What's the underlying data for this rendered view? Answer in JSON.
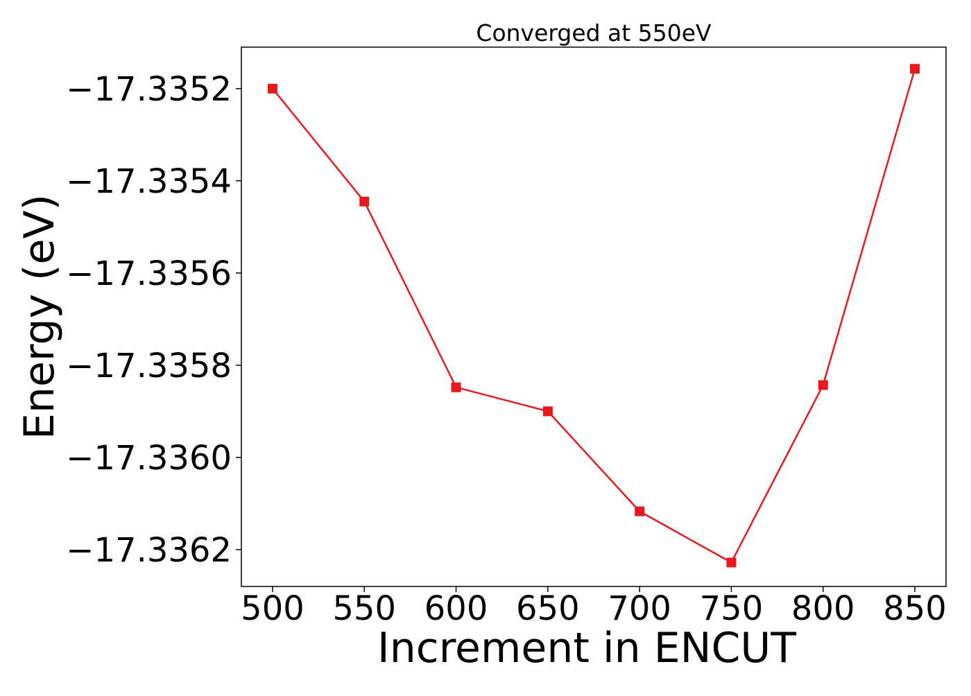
{
  "chart_data": {
    "type": "line",
    "title": "Converged at 550eV",
    "xlabel": "Increment in ENCUT",
    "ylabel": "Energy (eV)",
    "x": [
      500,
      550,
      600,
      650,
      700,
      750,
      800,
      850
    ],
    "xticks": [
      500,
      550,
      600,
      650,
      700,
      750,
      800,
      850
    ],
    "xtick_labels": [
      "500",
      "550",
      "600",
      "650",
      "700",
      "750",
      "800",
      "850"
    ],
    "xlim": [
      483,
      867
    ],
    "yticks": [
      -17.3352,
      -17.3354,
      -17.3356,
      -17.3358,
      -17.336,
      -17.3362
    ],
    "ytick_labels": [
      "−17.3352",
      "−17.3354",
      "−17.3356",
      "−17.3358",
      "−17.3360",
      "−17.3362"
    ],
    "ylim": [
      -17.33628,
      -17.33511
    ],
    "grid": false,
    "series": [
      {
        "color": "#e8191c",
        "marker": "square",
        "values": [
          -17.3352,
          -17.335445,
          -17.335848,
          -17.3359,
          -17.336117,
          -17.336228,
          -17.335843,
          -17.335157
        ]
      }
    ]
  }
}
